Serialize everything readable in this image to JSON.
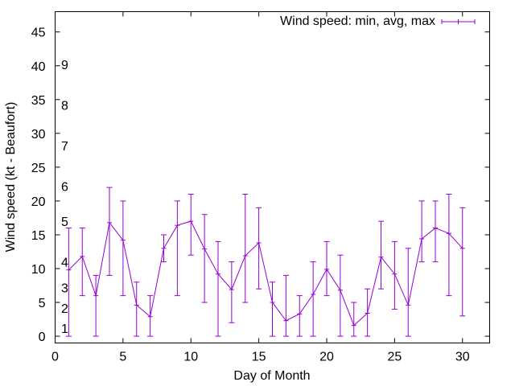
{
  "chart_data": {
    "type": "line",
    "title": "",
    "xlabel": "Day of Month",
    "ylabel": "Wind speed (kt - Beaufort)",
    "xlim": [
      0,
      32
    ],
    "ylim": [
      -1,
      48
    ],
    "x_ticks": [
      0,
      5,
      10,
      15,
      20,
      25,
      30
    ],
    "y_ticks": [
      0,
      5,
      10,
      15,
      20,
      25,
      30,
      35,
      40,
      45
    ],
    "grid": false,
    "legend_position": "top-right",
    "colors": {
      "series": "#9400d3",
      "axis": "#000000"
    },
    "series": [
      {
        "name": "Wind speed: min, avg, max",
        "style": "linespoints-with-errorbars",
        "x": [
          1,
          2,
          3,
          4,
          5,
          6,
          7,
          8,
          9,
          10,
          11,
          12,
          13,
          14,
          15,
          16,
          17,
          18,
          19,
          20,
          21,
          22,
          23,
          24,
          25,
          26,
          27,
          28,
          29,
          30
        ],
        "avg": [
          9.8,
          11.8,
          6,
          16.8,
          14.2,
          4.6,
          2.9,
          13,
          16.4,
          17,
          12.9,
          9.2,
          6.9,
          11.9,
          13.8,
          5,
          2.3,
          3.3,
          6.2,
          9.9,
          6.8,
          1.6,
          3.4,
          11.7,
          9.2,
          4.6,
          14.4,
          16,
          15.2,
          13
        ],
        "min": [
          0,
          6,
          0,
          9,
          6,
          0,
          0,
          11,
          6,
          12,
          5,
          0,
          2,
          5,
          7,
          0,
          0,
          0,
          0,
          6,
          0,
          0,
          0,
          7,
          4,
          0,
          11,
          11,
          6,
          3
        ],
        "max": [
          16,
          16,
          9,
          22,
          20,
          8,
          6,
          15,
          20,
          21,
          18,
          14,
          11,
          21,
          19,
          8,
          9,
          6,
          11,
          14,
          12,
          5,
          7,
          17,
          14,
          13,
          20,
          20,
          21,
          19
        ]
      }
    ],
    "annotations": [
      {
        "text": "1",
        "y": 1.2
      },
      {
        "text": "2",
        "y": 4.2
      },
      {
        "text": "3",
        "y": 7.2
      },
      {
        "text": "4",
        "y": 11
      },
      {
        "text": "5",
        "y": 17
      },
      {
        "text": "6",
        "y": 22.2
      },
      {
        "text": "7",
        "y": 28.2
      },
      {
        "text": "8",
        "y": 34.2
      },
      {
        "text": "9",
        "y": 40.2
      }
    ]
  }
}
